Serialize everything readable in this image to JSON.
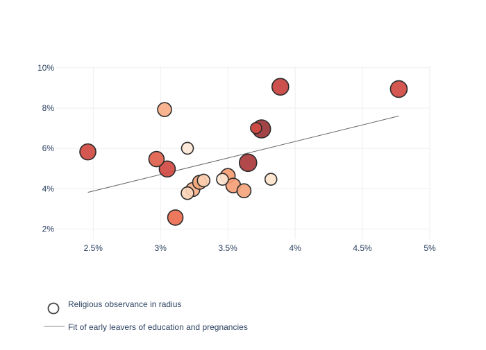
{
  "chart_data": {
    "type": "scatter",
    "xlim": [
      0.0222,
      0.05
    ],
    "ylim": [
      0.015,
      0.101
    ],
    "x_ticks": [
      {
        "value": 0.025,
        "label": "2.5%"
      },
      {
        "value": 0.03,
        "label": "3%"
      },
      {
        "value": 0.035,
        "label": "3.5%"
      },
      {
        "value": 0.04,
        "label": "4%"
      },
      {
        "value": 0.045,
        "label": "4.5%"
      },
      {
        "value": 0.05,
        "label": "5%"
      }
    ],
    "y_ticks": [
      {
        "value": 0.02,
        "label": "2%"
      },
      {
        "value": 0.04,
        "label": "4%"
      },
      {
        "value": 0.06,
        "label": "6%"
      },
      {
        "value": 0.08,
        "label": "8%"
      },
      {
        "value": 0.1,
        "label": "10%"
      }
    ],
    "grid": true,
    "series": [
      {
        "name": "Religious observance in radius",
        "mode": "markers",
        "points": [
          {
            "x": 0.0246,
            "y": 0.0583,
            "size": 0.65,
            "color": "#d04a42"
          },
          {
            "x": 0.0297,
            "y": 0.0547,
            "size": 0.6,
            "color": "#e0604c"
          },
          {
            "x": 0.0303,
            "y": 0.0793,
            "size": 0.5,
            "color": "#f7ad88"
          },
          {
            "x": 0.0305,
            "y": 0.0498,
            "size": 0.65,
            "color": "#d04a42"
          },
          {
            "x": 0.0311,
            "y": 0.0257,
            "size": 0.6,
            "color": "#ea6d50"
          },
          {
            "x": 0.032,
            "y": 0.0601,
            "size": 0.35,
            "color": "#fde7d5"
          },
          {
            "x": 0.032,
            "y": 0.0378,
            "size": 0.4,
            "color": "#fbd5b8"
          },
          {
            "x": 0.0324,
            "y": 0.0396,
            "size": 0.5,
            "color": "#f7b089"
          },
          {
            "x": 0.0329,
            "y": 0.0432,
            "size": 0.5,
            "color": "#f5a77c"
          },
          {
            "x": 0.0332,
            "y": 0.0441,
            "size": 0.4,
            "color": "#fbcfb0"
          },
          {
            "x": 0.0346,
            "y": 0.0447,
            "size": 0.35,
            "color": "#fde5d0"
          },
          {
            "x": 0.035,
            "y": 0.0464,
            "size": 0.55,
            "color": "#f59c72"
          },
          {
            "x": 0.0354,
            "y": 0.0416,
            "size": 0.55,
            "color": "#f4a076"
          },
          {
            "x": 0.0362,
            "y": 0.039,
            "size": 0.5,
            "color": "#f4a57c"
          },
          {
            "x": 0.0365,
            "y": 0.0529,
            "size": 0.75,
            "color": "#aa3a3c"
          },
          {
            "x": 0.0371,
            "y": 0.0701,
            "size": 0.3,
            "color": "#d34a43"
          },
          {
            "x": 0.0375,
            "y": 0.0697,
            "size": 0.8,
            "color": "#9b3538"
          },
          {
            "x": 0.0382,
            "y": 0.0447,
            "size": 0.35,
            "color": "#fde3cb"
          },
          {
            "x": 0.0389,
            "y": 0.0906,
            "size": 0.7,
            "color": "#c8413f"
          },
          {
            "x": 0.0477,
            "y": 0.0895,
            "size": 0.7,
            "color": "#d04a42"
          }
        ]
      },
      {
        "name": "Fit of early leavers of education and pregnancies",
        "mode": "line",
        "color": "#666666",
        "x": [
          0.0246,
          0.0477
        ],
        "y": [
          0.0382,
          0.0761
        ]
      }
    ],
    "legend": "bottom-left"
  }
}
